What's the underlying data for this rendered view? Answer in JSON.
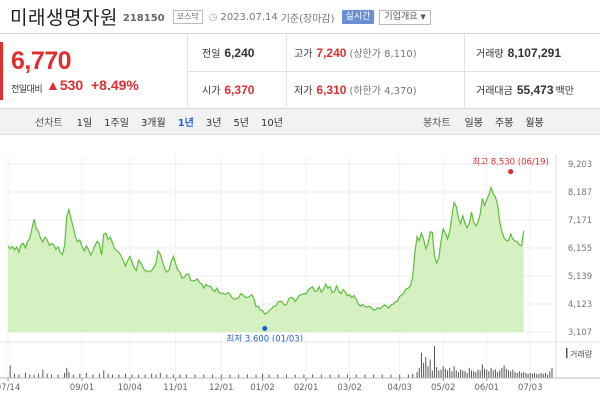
{
  "header": {
    "name": "미래생명자원",
    "code": "218150",
    "market": "코스닥",
    "date": "2023.07.14",
    "basis": "기준(장마감)",
    "realtime_label": "실시간",
    "company_info_label": "기업개요"
  },
  "quote": {
    "price": "6,770",
    "prev_label": "전일대비",
    "change": "530",
    "change_pct": "+8.49%",
    "prev_close_label": "전일",
    "prev_close": "6,240",
    "high_label": "고가",
    "high": "7,240",
    "upper_limit": "(상한가 8,110)",
    "volume_label": "거래량",
    "volume": "8,107,291",
    "open_label": "시가",
    "open": "6,370",
    "low_label": "저가",
    "low": "6,310",
    "lower_limit": "(하한가 4,370)",
    "amount_label": "거래대금",
    "amount": "55,473",
    "amount_unit": "백만"
  },
  "toolbar": {
    "line_label": "선차트",
    "periods": [
      "1일",
      "1주일",
      "3개월",
      "1년",
      "3년",
      "5년",
      "10년"
    ],
    "active_period": "1년",
    "candle_label": "봉차트",
    "candles": [
      "일봉",
      "주봉",
      "월봉"
    ]
  },
  "colors": {
    "up": "#e12d2d",
    "down": "#2362d9",
    "line": "#5cbf3a",
    "fill": "#cfeeb6"
  },
  "chart_data": {
    "type": "area",
    "y_ticks": [
      "9,203",
      "8,187",
      "7,171",
      "6,155",
      "5,139",
      "4,123",
      "3,107"
    ],
    "ylim": [
      3107,
      9203
    ],
    "x_ticks": [
      "07/14",
      "09/01",
      "10/04",
      "11/01",
      "12/01",
      "01/02",
      "02/01",
      "03/02",
      "04/03",
      "05/02",
      "06/01",
      "07/03"
    ],
    "x_tick_index": [
      0,
      34,
      56,
      77,
      98,
      117,
      137,
      157,
      180,
      200,
      220,
      240
    ],
    "n_points": 251,
    "series": [
      {
        "values": [
          6230,
          6130,
          6210,
          6090,
          6190,
          6000,
          6280,
          6330,
          6150,
          6400,
          6500,
          6850,
          7200,
          6850,
          6750,
          6500,
          6380,
          6550,
          6450,
          6250,
          6320,
          6270,
          6100,
          6200,
          6000,
          5920,
          6250,
          7300,
          7550,
          7200,
          6900,
          6550,
          6380,
          6450,
          6200,
          6050,
          6230,
          6100,
          5900,
          6050,
          6250,
          6400,
          6300,
          5900,
          6650,
          6700,
          6460,
          6550,
          6350,
          6130,
          6050,
          6000,
          5850,
          5700,
          5500,
          5700,
          5850,
          5650,
          5430,
          5340,
          5720,
          5620,
          5450,
          5330,
          5320,
          5280,
          5340,
          5450,
          5600,
          6050,
          5930,
          5650,
          5400,
          5280,
          5350,
          5650,
          5850,
          5600,
          5350,
          5280,
          5060,
          5100,
          5200,
          5210,
          4980,
          4960,
          4980,
          5030,
          4900,
          4850,
          4700,
          4840,
          4760,
          4780,
          4650,
          4570,
          4700,
          4530,
          4520,
          4500,
          4470,
          4540,
          4480,
          4350,
          4300,
          4310,
          4350,
          4500,
          4450,
          4370,
          4360,
          4400,
          4460,
          4320,
          4030,
          4040,
          3900,
          3890,
          3750,
          3800,
          3880,
          3940,
          4040,
          4050,
          4190,
          4220,
          4200,
          4080,
          4100,
          4300,
          4370,
          4330,
          4210,
          4330,
          4450,
          4460,
          4500,
          4490,
          4620,
          4700,
          4750,
          4580,
          4600,
          4750,
          4550,
          4650,
          4850,
          4700,
          4750,
          4540,
          4570,
          4780,
          4580,
          4500,
          4650,
          4560,
          4420,
          4460,
          4360,
          4430,
          4300,
          4130,
          4050,
          4100,
          4040,
          4010,
          4040,
          3990,
          3900,
          3920,
          3990,
          3950,
          4030,
          4090,
          4050,
          3970,
          4090,
          4120,
          4200,
          4220,
          4400,
          4450,
          4540,
          4670,
          4700,
          4800,
          5100,
          6000,
          6570,
          6420,
          6700,
          6480,
          6120,
          6300,
          6740,
          6720,
          5870,
          5600,
          5790,
          6410,
          6850,
          6680,
          6480,
          6750,
          7300,
          7810,
          7650,
          7250,
          7030,
          7320,
          7060,
          6890,
          7040,
          7460,
          7080,
          6960,
          7100,
          7390,
          7950,
          7700,
          7900,
          8080,
          8350,
          8110,
          8010,
          7720,
          7100,
          6740,
          6520,
          6430,
          6420,
          6660,
          6480,
          6410,
          6390,
          6260,
          6240,
          6770
        ]
      }
    ],
    "annotations": [
      {
        "label": "최고",
        "value": "8,530",
        "date": "(06/19)",
        "index": 231,
        "y": 8530
      },
      {
        "label": "최저",
        "value": "3,600",
        "date": "(01/03)",
        "index": 118,
        "y": 3600
      }
    ],
    "volume_label": "거래량",
    "volume": {
      "bars": [
        [
          1,
          15
        ],
        [
          3,
          5
        ],
        [
          5,
          4
        ],
        [
          8,
          6
        ],
        [
          10,
          4
        ],
        [
          12,
          4
        ],
        [
          14,
          5
        ],
        [
          16,
          10
        ],
        [
          18,
          5
        ],
        [
          20,
          4
        ],
        [
          23,
          4
        ],
        [
          26,
          6
        ],
        [
          27,
          12
        ],
        [
          28,
          7
        ],
        [
          30,
          4
        ],
        [
          33,
          5
        ],
        [
          36,
          6
        ],
        [
          39,
          4
        ],
        [
          42,
          5
        ],
        [
          44,
          9
        ],
        [
          46,
          5
        ],
        [
          48,
          4
        ],
        [
          51,
          4
        ],
        [
          54,
          5
        ],
        [
          57,
          4
        ],
        [
          60,
          4
        ],
        [
          63,
          4
        ],
        [
          66,
          5
        ],
        [
          68,
          4
        ],
        [
          70,
          6
        ],
        [
          73,
          4
        ],
        [
          76,
          4
        ],
        [
          79,
          4
        ],
        [
          82,
          4
        ],
        [
          86,
          4
        ],
        [
          90,
          4
        ],
        [
          94,
          4
        ],
        [
          98,
          4
        ],
        [
          102,
          4
        ],
        [
          106,
          4
        ],
        [
          110,
          4
        ],
        [
          114,
          4
        ],
        [
          117,
          5
        ],
        [
          120,
          4
        ],
        [
          124,
          4
        ],
        [
          128,
          4
        ],
        [
          132,
          4
        ],
        [
          136,
          4
        ],
        [
          140,
          4
        ],
        [
          144,
          4
        ],
        [
          148,
          4
        ],
        [
          152,
          4
        ],
        [
          156,
          4
        ],
        [
          160,
          4
        ],
        [
          164,
          4
        ],
        [
          168,
          4
        ],
        [
          172,
          4
        ],
        [
          176,
          4
        ],
        [
          180,
          4
        ],
        [
          184,
          4
        ],
        [
          186,
          5
        ],
        [
          188,
          7
        ],
        [
          189,
          12
        ],
        [
          190,
          30
        ],
        [
          191,
          18
        ],
        [
          192,
          25
        ],
        [
          193,
          14
        ],
        [
          194,
          22
        ],
        [
          195,
          9
        ],
        [
          196,
          38
        ],
        [
          197,
          13
        ],
        [
          198,
          9
        ],
        [
          199,
          10
        ],
        [
          200,
          14
        ],
        [
          201,
          11
        ],
        [
          202,
          9
        ],
        [
          203,
          12
        ],
        [
          204,
          8
        ],
        [
          205,
          14
        ],
        [
          206,
          9
        ],
        [
          207,
          7
        ],
        [
          208,
          10
        ],
        [
          209,
          9
        ],
        [
          210,
          8
        ],
        [
          211,
          6
        ],
        [
          212,
          12
        ],
        [
          213,
          9
        ],
        [
          214,
          8
        ],
        [
          215,
          7
        ],
        [
          216,
          10
        ],
        [
          217,
          9
        ],
        [
          218,
          16
        ],
        [
          219,
          11
        ],
        [
          220,
          10
        ],
        [
          221,
          8
        ],
        [
          222,
          12
        ],
        [
          223,
          9
        ],
        [
          224,
          10
        ],
        [
          225,
          7
        ],
        [
          226,
          9
        ],
        [
          227,
          12
        ],
        [
          228,
          15
        ],
        [
          229,
          11
        ],
        [
          230,
          9
        ],
        [
          231,
          8
        ],
        [
          232,
          10
        ],
        [
          233,
          7
        ],
        [
          234,
          6
        ],
        [
          235,
          8
        ],
        [
          236,
          6
        ],
        [
          237,
          7
        ],
        [
          238,
          6
        ],
        [
          239,
          5
        ],
        [
          240,
          6
        ],
        [
          241,
          5
        ],
        [
          242,
          6
        ],
        [
          243,
          5
        ],
        [
          244,
          5
        ],
        [
          245,
          6
        ],
        [
          246,
          5
        ],
        [
          247,
          6
        ],
        [
          248,
          4
        ],
        [
          249,
          8
        ],
        [
          250,
          12
        ]
      ]
    }
  }
}
